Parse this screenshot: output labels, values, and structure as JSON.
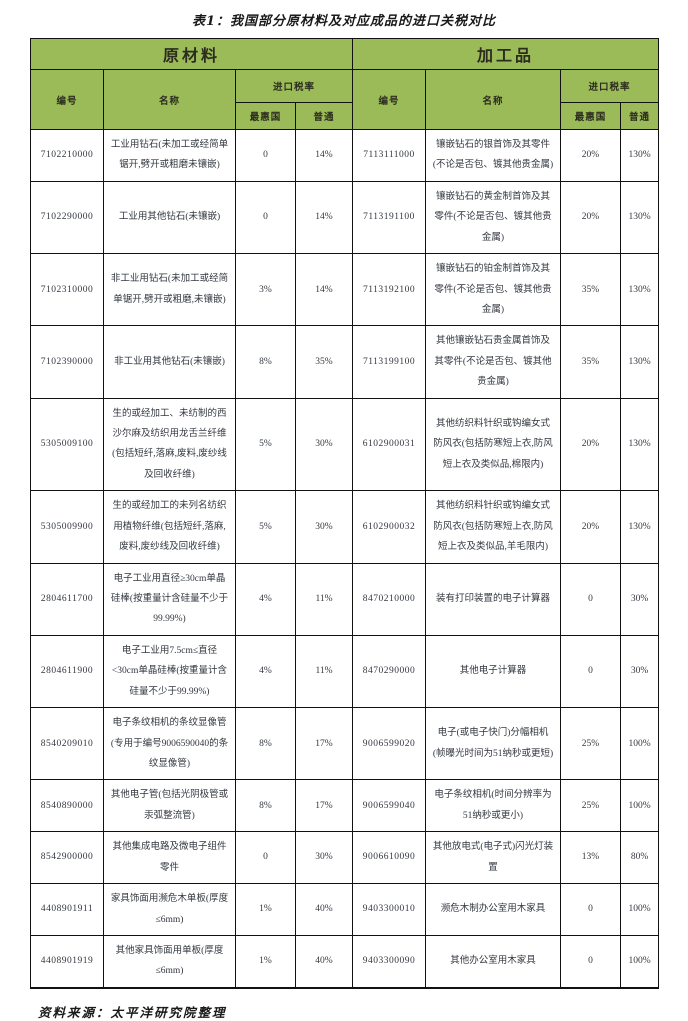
{
  "title": "表1：我国部分原材料及对应成品的进口关税对比",
  "header": {
    "raw_group": "原材料",
    "processed_group": "加工品",
    "code": "编号",
    "name": "名称",
    "tariff": "进口税率",
    "mfn": "最惠国",
    "general": "普通"
  },
  "colors": {
    "header_green": "#9bbb59",
    "border": "#111111",
    "text": "#333840"
  },
  "rows": [
    {
      "raw": {
        "code": "7102210000",
        "name": "工业用钻石(未加工或经简单锯开,劈开或粗磨未镶嵌)",
        "mfn": "0",
        "general": "14%"
      },
      "processed": {
        "code": "7113111000",
        "name": "镶嵌钻石的银首饰及其零件(不论是否包、镀其他贵金属)",
        "mfn": "20%",
        "general": "130%"
      }
    },
    {
      "raw": {
        "code": "7102290000",
        "name": "工业用其他钻石(未镶嵌)",
        "mfn": "0",
        "general": "14%"
      },
      "processed": {
        "code": "7113191100",
        "name": "镶嵌钻石的黄金制首饰及其零件(不论是否包、镀其他贵金属)",
        "mfn": "20%",
        "general": "130%"
      }
    },
    {
      "raw": {
        "code": "7102310000",
        "name": "非工业用钻石(未加工或经简单锯开,劈开或粗磨,未镶嵌)",
        "mfn": "3%",
        "general": "14%"
      },
      "processed": {
        "code": "7113192100",
        "name": "镶嵌钻石的铂金制首饰及其零件(不论是否包、镀其他贵金属)",
        "mfn": "35%",
        "general": "130%"
      }
    },
    {
      "raw": {
        "code": "7102390000",
        "name": "非工业用其他钻石(未镶嵌)",
        "mfn": "8%",
        "general": "35%"
      },
      "processed": {
        "code": "7113199100",
        "name": "其他镶嵌钻石贵金属首饰及其零件(不论是否包、镀其他贵金属)",
        "mfn": "35%",
        "general": "130%"
      }
    },
    {
      "raw": {
        "code": "5305009100",
        "name": "生的或经加工、未纺制的西沙尔麻及纺织用龙舌兰纤维(包括短纤,落麻,废料,废纱线及回收纤维)",
        "mfn": "5%",
        "general": "30%"
      },
      "processed": {
        "code": "6102900031",
        "name": "其他纺织料针织或钩编女式防风衣(包括防寒短上衣,防风短上衣及类似品,棉限内)",
        "mfn": "20%",
        "general": "130%"
      }
    },
    {
      "raw": {
        "code": "5305009900",
        "name": "生的或经加工的未列名纺织用植物纤维(包括短纤,落麻,废料,废纱线及回收纤维)",
        "mfn": "5%",
        "general": "30%"
      },
      "processed": {
        "code": "6102900032",
        "name": "其他纺织料针织或钩编女式防风衣(包括防寒短上衣,防风短上衣及类似品,羊毛限内)",
        "mfn": "20%",
        "general": "130%"
      }
    },
    {
      "raw": {
        "code": "2804611700",
        "name": "电子工业用直径≥30cm单晶硅棒(按重量计含硅量不少于99.99%)",
        "mfn": "4%",
        "general": "11%"
      },
      "processed": {
        "code": "8470210000",
        "name": "装有打印装置的电子计算器",
        "mfn": "0",
        "general": "30%"
      }
    },
    {
      "raw": {
        "code": "2804611900",
        "name": "电子工业用7.5cm≤直径<30cm单晶硅棒(按重量计含硅量不少于99.99%)",
        "mfn": "4%",
        "general": "11%"
      },
      "processed": {
        "code": "8470290000",
        "name": "其他电子计算器",
        "mfn": "0",
        "general": "30%"
      }
    },
    {
      "raw": {
        "code": "8540209010",
        "name": "电子条纹相机的条纹显像管(专用于编号9006590040的条纹显像管)",
        "mfn": "8%",
        "general": "17%"
      },
      "processed": {
        "code": "9006599020",
        "name": "电子(或电子快门)分幅相机(帧曝光时间为51纳秒或更短)",
        "mfn": "25%",
        "general": "100%"
      }
    },
    {
      "raw": {
        "code": "8540890000",
        "name": "其他电子管(包括光阴极管或汞弧整流管)",
        "mfn": "8%",
        "general": "17%"
      },
      "processed": {
        "code": "9006599040",
        "name": "电子条纹相机(时间分辨率为51纳秒或更小)",
        "mfn": "25%",
        "general": "100%"
      }
    },
    {
      "raw": {
        "code": "8542900000",
        "name": "其他集成电路及微电子组件零件",
        "mfn": "0",
        "general": "30%"
      },
      "processed": {
        "code": "9006610090",
        "name": "其他放电式(电子式)闪光灯装置",
        "mfn": "13%",
        "general": "80%"
      }
    },
    {
      "raw": {
        "code": "4408901911",
        "name": "家具饰面用濒危木单板(厚度≤6mm)",
        "mfn": "1%",
        "general": "40%"
      },
      "processed": {
        "code": "9403300010",
        "name": "濒危木制办公室用木家具",
        "mfn": "0",
        "general": "100%"
      }
    },
    {
      "raw": {
        "code": "4408901919",
        "name": "其他家具饰面用单板(厚度≤6mm)",
        "mfn": "1%",
        "general": "40%"
      },
      "processed": {
        "code": "9403300090",
        "name": "其他办公室用木家具",
        "mfn": "0",
        "general": "100%"
      }
    }
  ],
  "footer": {
    "source": "资料来源：太平洋研究院整理"
  }
}
